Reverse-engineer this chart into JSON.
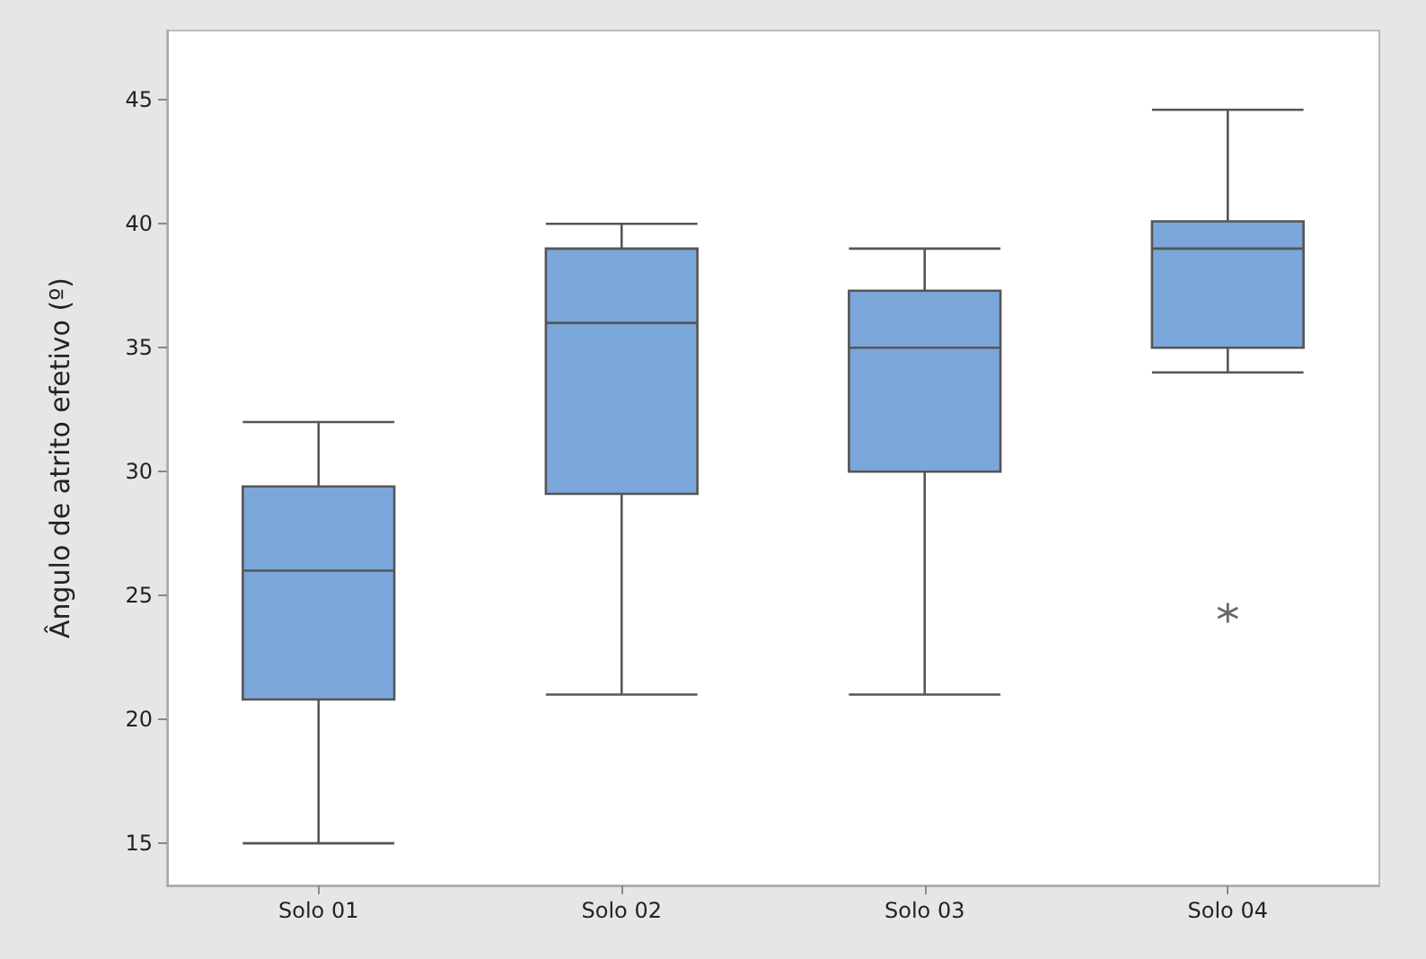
{
  "chart_data": {
    "type": "box",
    "ylabel": "Ângulo de atrito efetivo (º)",
    "categories": [
      "Solo 01",
      "Solo 02",
      "Solo 03",
      "Solo 04"
    ],
    "series": [
      {
        "color": "#7ba6d9",
        "boxes": [
          {
            "low": 15.0,
            "q1": 20.8,
            "median": 26.0,
            "q3": 29.4,
            "high": 32.0
          },
          {
            "low": 21.0,
            "q1": 29.1,
            "median": 36.0,
            "q3": 39.0,
            "high": 40.0
          },
          {
            "low": 21.0,
            "q1": 30.0,
            "median": 35.0,
            "q3": 37.3,
            "high": 39.0
          },
          {
            "low": 34.0,
            "q1": 35.0,
            "median": 39.0,
            "q3": 40.1,
            "high": 44.6,
            "outliers": [
              24.3
            ]
          }
        ]
      }
    ],
    "ylim": [
      13.3,
      47.8
    ],
    "yticks": [
      15,
      20,
      25,
      30,
      35,
      40,
      45
    ],
    "grid": false
  }
}
